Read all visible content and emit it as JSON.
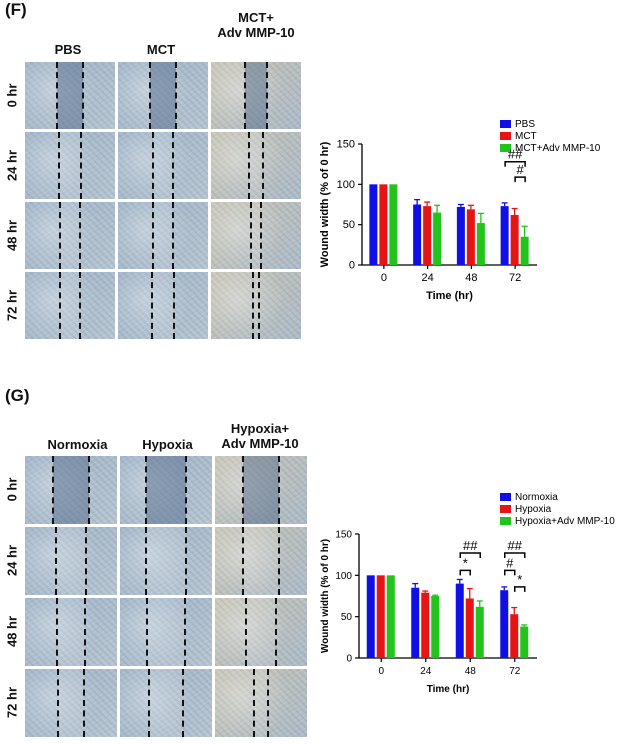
{
  "panels": [
    {
      "letter": "(F)",
      "columns": [
        "PBS",
        "MCT",
        "MCT+\nAdv MMP-10"
      ],
      "rows": [
        "0 hr",
        "24 hr",
        "48 hr",
        "72 hr"
      ],
      "gap_style": [
        [
          "#3d5a7a",
          "#6a85a6",
          "#9bb0c8"
        ],
        [
          "#9fb6cc",
          "#b7c6d4",
          "#c9d2d6"
        ],
        [
          "#9fb6cc",
          "#b7c6d4",
          "#c9d2d6"
        ],
        [
          "#9fb6cc",
          "#b7c6d4",
          "#c9d2d6"
        ]
      ]
    },
    {
      "letter": "(G)",
      "columns": [
        "Normoxia",
        "Hypoxia",
        "Hypoxia+\nAdv MMP-10"
      ],
      "rows": [
        "0 hr",
        "24 hr",
        "48 hr",
        "72 hr"
      ]
    }
  ],
  "colors": {
    "blue": "#1010e6",
    "red": "#e61414",
    "green": "#22c41c"
  },
  "chart_data": [
    {
      "type": "bar",
      "categories": [
        "0",
        "24",
        "48",
        "72"
      ],
      "series": [
        {
          "name": "PBS",
          "values": [
            100,
            75,
            72,
            73
          ],
          "errors": [
            0,
            6,
            3,
            4
          ]
        },
        {
          "name": "MCT",
          "values": [
            100,
            73,
            69,
            62
          ],
          "errors": [
            0,
            5,
            5,
            8
          ]
        },
        {
          "name": "MCT+Adv MMP-10",
          "values": [
            100,
            65,
            52,
            35
          ],
          "errors": [
            0,
            9,
            12,
            13
          ]
        }
      ],
      "xlabel": "Time (hr)",
      "ylabel": "Wound width (% of 0 hr)",
      "ylim": [
        0,
        150
      ],
      "yticks": [
        "0",
        "50",
        "100",
        "150"
      ],
      "annotations": [
        "##",
        "#"
      ],
      "legend_position": "top-right"
    },
    {
      "type": "bar",
      "categories": [
        "0",
        "24",
        "48",
        "72"
      ],
      "series": [
        {
          "name": "Normoxia",
          "values": [
            100,
            85,
            90,
            82
          ],
          "errors": [
            0,
            5,
            5,
            4
          ]
        },
        {
          "name": "Hypoxia",
          "values": [
            100,
            79,
            72,
            53
          ],
          "errors": [
            0,
            2,
            12,
            8
          ]
        },
        {
          "name": "Hypoxia+Adv MMP-10",
          "values": [
            100,
            75,
            62,
            38
          ],
          "errors": [
            0,
            1,
            7,
            2
          ]
        }
      ],
      "xlabel": "Time (hr)",
      "ylabel": "Wound width (% of 0 hr)",
      "ylim": [
        0,
        150
      ],
      "yticks": [
        "0",
        "50",
        "100",
        "150"
      ],
      "annotations": [
        "##",
        "*",
        "##",
        "#",
        "*"
      ],
      "legend_position": "top-right"
    }
  ]
}
